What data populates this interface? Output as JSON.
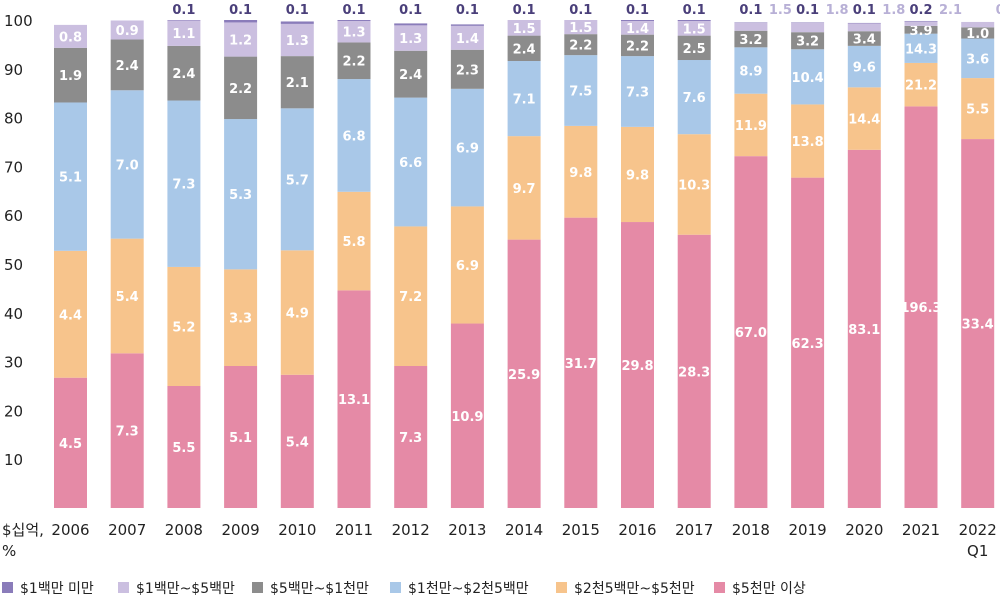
{
  "chart_data": {
    "type": "bar",
    "stacked": true,
    "orientation": "vertical",
    "xlabel": "",
    "ylabel": "$십억, %",
    "ylim": [
      0,
      100
    ],
    "yticks": [
      10,
      20,
      30,
      40,
      50,
      60,
      70,
      80,
      90,
      100
    ],
    "grid": false,
    "legend_position": "bottom",
    "categories": [
      "2006",
      "2007",
      "2008",
      "2009",
      "2010",
      "2011",
      "2012",
      "2013",
      "2014",
      "2015",
      "2016",
      "2017",
      "2018",
      "2019",
      "2020",
      "2021",
      "2022 Q1"
    ],
    "series": [
      {
        "name": "$5천만 이상",
        "color": "#e58aa6",
        "share": [
          26.7,
          31.7,
          25.0,
          29.1,
          27.3,
          44.6,
          29.1,
          37.8,
          55.0,
          59.5,
          58.6,
          56.0,
          72.1,
          67.7,
          73.4,
          82.3,
          75.6
        ],
        "labels": [
          "4.5",
          "7.3",
          "5.5",
          "5.1",
          "5.4",
          "13.1",
          "7.3",
          "10.9",
          "25.9",
          "31.7",
          "29.8",
          "28.3",
          "67.0",
          "62.3",
          "83.1",
          "196.3",
          "33.4"
        ]
      },
      {
        "name": "$2천5백만~$5천만",
        "color": "#f7c48c",
        "share": [
          26.0,
          23.5,
          24.4,
          19.8,
          25.5,
          20.2,
          28.6,
          24.0,
          21.2,
          18.8,
          19.5,
          20.6,
          12.8,
          15.0,
          12.8,
          8.9,
          12.5
        ],
        "labels": [
          "4.4",
          "5.4",
          "5.2",
          "3.3",
          "4.9",
          "5.8",
          "7.2",
          "6.9",
          "9.7",
          "9.8",
          "9.8",
          "10.3",
          "11.9",
          "13.8",
          "14.4",
          "21.2",
          "5.5"
        ]
      },
      {
        "name": "$1천만~$2천5백만",
        "color": "#a9c8e8",
        "share": [
          30.4,
          30.4,
          34.1,
          30.8,
          29.1,
          23.1,
          26.4,
          24.1,
          15.4,
          14.5,
          14.5,
          15.2,
          9.5,
          11.3,
          8.5,
          6.0,
          8.1
        ]
      },
      {
        "name": "$5백만~$1천만",
        "color": "#8c8c8c",
        "share": [
          11.2,
          10.4,
          11.2,
          12.8,
          10.7,
          7.5,
          9.6,
          8.0,
          5.2,
          4.3,
          4.4,
          5.0,
          3.4,
          3.5,
          3.0,
          1.6,
          2.3
        ]
      },
      {
        "name": "$1백만~$5백만",
        "color": "#cbbfe0",
        "share": [
          4.7,
          3.9,
          5.2,
          7.0,
          6.6,
          4.4,
          5.2,
          4.9,
          3.2,
          2.9,
          2.8,
          3.0,
          1.6,
          1.9,
          1.6,
          0.9,
          1.1
        ],
        "labels": [
          "0.8",
          "0.9",
          "1.1",
          "1.2",
          "1.3",
          "1.3",
          "1.3",
          "1.4",
          "1.5",
          "1.5",
          "1.4",
          "1.5",
          "1.5",
          "1.8",
          "1.8",
          "2.1",
          "0.5"
        ]
      },
      {
        "name": "$1백만 미만",
        "color": "#8a7cba",
        "share": [
          0.0,
          0.0,
          0.4,
          0.6,
          0.5,
          0.3,
          0.4,
          0.3,
          0.2,
          0.2,
          0.2,
          0.2,
          0.1,
          0.1,
          0.1,
          0.1,
          0.0
        ],
        "labels": [
          "",
          "",
          "0.1",
          "0.1",
          "0.1",
          "0.1",
          "0.1",
          "0.1",
          "0.1",
          "0.1",
          "0.1",
          "0.1",
          "0.1",
          "0.1",
          "0.1",
          "0.2",
          ""
        ]
      }
    ],
    "segment_values": {
      "$1천만~$2천5백만": [
        "5.1",
        "7.0",
        "7.3",
        "5.3",
        "5.7",
        "6.8",
        "6.6",
        "6.9",
        "7.1",
        "7.5",
        "7.3",
        "7.6",
        "8.9",
        "10.4",
        "9.6",
        "14.3",
        "3.6"
      ],
      "$5백만~$1천만": [
        "1.9",
        "2.4",
        "2.4",
        "2.2",
        "2.1",
        "2.2",
        "2.4",
        "2.3",
        "2.4",
        "2.2",
        "2.2",
        "2.5",
        "3.2",
        "3.2",
        "3.4",
        "3.9",
        "1.0"
      ]
    },
    "colors": {
      "text_on_bar": "#ffffff",
      "text_top_dark": "#4a3f7a",
      "text_top_light": "#b8b0d6",
      "axis_text": "#222222"
    }
  }
}
